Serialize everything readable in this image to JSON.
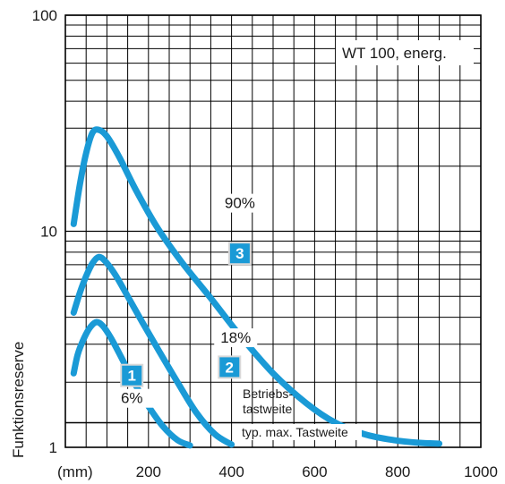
{
  "chart_data": {
    "type": "line",
    "title": "",
    "panel_label": "WT 100, energ.",
    "ylabel": "Funktionsreserve",
    "xlabel": "",
    "x_unit_label": "(mm)",
    "x_ticks": [
      "200",
      "400",
      "600",
      "800",
      "1000"
    ],
    "y_ticks": [
      "1",
      "10",
      "100"
    ],
    "xlim": [
      0,
      1000
    ],
    "ylim": [
      1,
      100
    ],
    "y_scale": "log",
    "grid": true,
    "colors": {
      "curve": "#1a9ad6",
      "grid": "#000000",
      "badge": "#1a9ad6",
      "badge_text": "#ffffff"
    },
    "series": [
      {
        "badge": "1",
        "reflectance": "6%",
        "x": [
          20,
          30,
          45,
          60,
          75,
          90,
          110,
          135,
          165,
          200,
          235,
          270,
          300
        ],
        "y": [
          2.2,
          2.7,
          3.2,
          3.6,
          3.8,
          3.65,
          3.2,
          2.6,
          2.0,
          1.55,
          1.25,
          1.08,
          1.02
        ]
      },
      {
        "badge": "2",
        "reflectance": "18%",
        "x": [
          20,
          35,
          50,
          65,
          80,
          95,
          120,
          150,
          185,
          225,
          270,
          315,
          360,
          400
        ],
        "y": [
          4.2,
          5.2,
          6.2,
          7.1,
          7.6,
          7.3,
          6.3,
          5.0,
          3.8,
          2.8,
          2.0,
          1.45,
          1.15,
          1.03
        ]
      },
      {
        "badge": "3",
        "reflectance": "90%",
        "x": [
          20,
          35,
          50,
          65,
          80,
          100,
          130,
          170,
          220,
          280,
          350,
          420,
          500,
          580,
          650,
          720,
          790,
          850,
          900
        ],
        "y": [
          10.8,
          16.5,
          23.0,
          28.5,
          29.5,
          27.5,
          22.0,
          15.5,
          10.5,
          7.2,
          4.9,
          3.3,
          2.2,
          1.6,
          1.3,
          1.15,
          1.08,
          1.05,
          1.04
        ]
      }
    ],
    "reference_line": {
      "y": 1.3,
      "label_above": "Betriebs-\ntastweite",
      "label_below": "typ. max. Tastweite"
    }
  }
}
